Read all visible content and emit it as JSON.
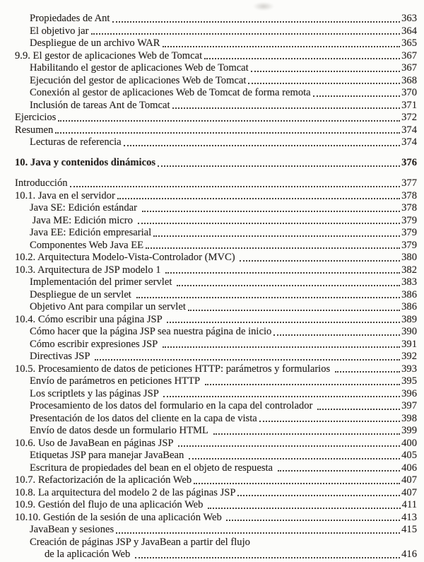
{
  "document": {
    "kind": "book-table-of-contents",
    "language": "es",
    "background_color": "#fcfcfa",
    "text_color": "#272320",
    "leader_dot_color": "#45403a",
    "entries": [
      {
        "label": "Propiedades de Ant",
        "page": "363",
        "indent": 1
      },
      {
        "label": "El objetivo jar",
        "page": "364",
        "indent": 1
      },
      {
        "label": "Despliegue de un archivo WAR",
        "page": "365",
        "indent": 1
      },
      {
        "label": "9.9. El gestor de aplicaciones Web de Tomcat",
        "page": "367",
        "indent": 0
      },
      {
        "label": "Habilitando el gestor de aplicaciones Web de Tomcat",
        "page": "367",
        "indent": 1
      },
      {
        "label": "Ejecución del gestor de aplicaciones Web de Tomcat",
        "page": "368",
        "indent": 1
      },
      {
        "label": "Conexión al gestor de aplicaciones Web de Tomcat de forma remota",
        "page": "370",
        "indent": 1
      },
      {
        "label": "Inclusión de tareas Ant de Tomcat",
        "page": "371",
        "indent": 1
      },
      {
        "label": "Ejercicios",
        "page": "372",
        "indent": 0
      },
      {
        "label": "Resumen",
        "page": "374",
        "indent": 0
      },
      {
        "label": "Lecturas de referencia",
        "page": "374",
        "indent": 1
      },
      {
        "spacer": true
      },
      {
        "label": "10. Java y contenidos dinámicos",
        "page": "376",
        "indent": 0,
        "bold": true
      },
      {
        "spacer": true
      },
      {
        "label": "Introducción",
        "page": "377",
        "indent": 0
      },
      {
        "label": "10.1. Java en el servidor",
        "page": "378",
        "indent": 0
      },
      {
        "label": "Java SE: Edición estándar ",
        "page": "378",
        "indent": 1
      },
      {
        "label": " Java ME: Edición micro ",
        "page": "379",
        "indent": 1
      },
      {
        "label": "Java EE: Edición empresarial",
        "page": "379",
        "indent": 1
      },
      {
        "label": "Componentes Web Java EE",
        "page": "379",
        "indent": 1
      },
      {
        "label": "10.2. Arquitectura Modelo-Vista-Controlador (MVC) ",
        "page": "380",
        "indent": 0
      },
      {
        "label": "10.3. Arquitectura de JSP modelo 1 ",
        "page": "382",
        "indent": 0
      },
      {
        "label": "Implementación del primer servlet ",
        "page": "383",
        "indent": 1
      },
      {
        "label": "Despliegue de un servlet ",
        "page": "386",
        "indent": 1
      },
      {
        "label": "Objetivo Ant para compilar un servlet",
        "page": "386",
        "indent": 1
      },
      {
        "label": "10.4. Cómo escribir una página JSP ",
        "page": "389",
        "indent": 0
      },
      {
        "label": "Cómo hacer que la página JSP sea nuestra página de inicio",
        "page": "390",
        "indent": 1
      },
      {
        "label": "Cómo escribir expresiones JSP ",
        "page": "391",
        "indent": 1
      },
      {
        "label": "Directivas JSP ",
        "page": "392",
        "indent": 1
      },
      {
        "label": "10.5. Procesamiento de datos de peticiones HTTP: parámetros y formularios ",
        "page": "393",
        "indent": 0
      },
      {
        "label": "Envío de parámetros en peticiones HTTP ",
        "page": "395",
        "indent": 1
      },
      {
        "label": "Los scriptlets y las páginas JSP ",
        "page": "396",
        "indent": 1
      },
      {
        "label": "Procesamiento de los datos del formulario en la capa del controlador ",
        "page": "397",
        "indent": 1
      },
      {
        "label": "Presentación de los datos del cliente en la capa de vista",
        "page": "398",
        "indent": 1
      },
      {
        "label": "Envío de datos desde un formulario HTML ",
        "page": "399",
        "indent": 1
      },
      {
        "label": "10.6. Uso de JavaBean en páginas JSP ",
        "page": "400",
        "indent": 0
      },
      {
        "label": "Etiquetas JSP para manejar JavaBean ",
        "page": "405",
        "indent": 1
      },
      {
        "label": "Escritura de propiedades del bean en el objeto de respuesta ",
        "page": "406",
        "indent": 1
      },
      {
        "label": "10.7. Refactorización de la aplicación Web",
        "page": "407",
        "indent": 0
      },
      {
        "label": "10.8. La arquitectura del modelo 2 de las páginas JSP",
        "page": "407",
        "indent": 0
      },
      {
        "label": "10.9. Gestión del flujo de una aplicación Web ",
        "page": "411",
        "indent": 0
      },
      {
        "label": "10.10. Gestión de la sesión de una aplicación Web ",
        "page": "413",
        "indent": 0
      },
      {
        "label": "JavaBean y sesiones",
        "page": "415",
        "indent": 1
      },
      {
        "label": "Creación de páginas JSP y JavaBean a partir del flujo",
        "page": "",
        "indent": 1
      },
      {
        "label": "de la aplicación Web ",
        "page": "416",
        "indent": 2
      }
    ]
  }
}
